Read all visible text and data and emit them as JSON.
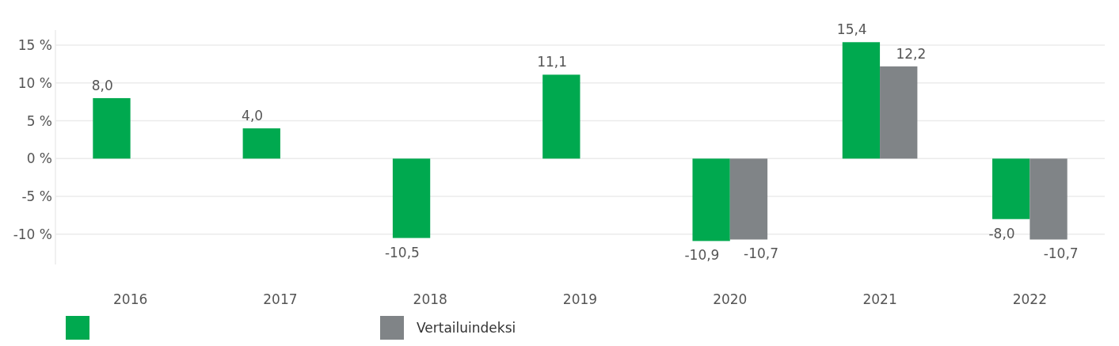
{
  "chart_data": {
    "type": "bar",
    "categories": [
      "2016",
      "2017",
      "2018",
      "2019",
      "2020",
      "2021",
      "2022"
    ],
    "series": [
      {
        "color": "#00a94f",
        "values": [
          8.0,
          4.0,
          -10.5,
          11.1,
          -10.9,
          15.4,
          -8.0
        ],
        "value_labels": [
          "8,0",
          "4,0",
          "-10,5",
          "11,1",
          "-10,9",
          "15,4",
          "-8,0"
        ]
      },
      {
        "name": "Vertailuindeksi",
        "color": "#808487",
        "values": [
          null,
          null,
          null,
          null,
          -10.7,
          12.2,
          -10.7
        ],
        "value_labels": [
          null,
          null,
          null,
          null,
          "-10,7",
          "12,2",
          "-10,7"
        ]
      }
    ],
    "ylim": [
      -14,
      17
    ],
    "yticks": [
      {
        "value": -10,
        "label": "-10 %"
      },
      {
        "value": -5,
        "label": "-5 %"
      },
      {
        "value": 0,
        "label": "0 %"
      },
      {
        "value": 5,
        "label": "5 %"
      },
      {
        "value": 10,
        "label": "10 %"
      },
      {
        "value": 15,
        "label": "15 %"
      }
    ],
    "grid": "y",
    "legend": "bottom left"
  }
}
